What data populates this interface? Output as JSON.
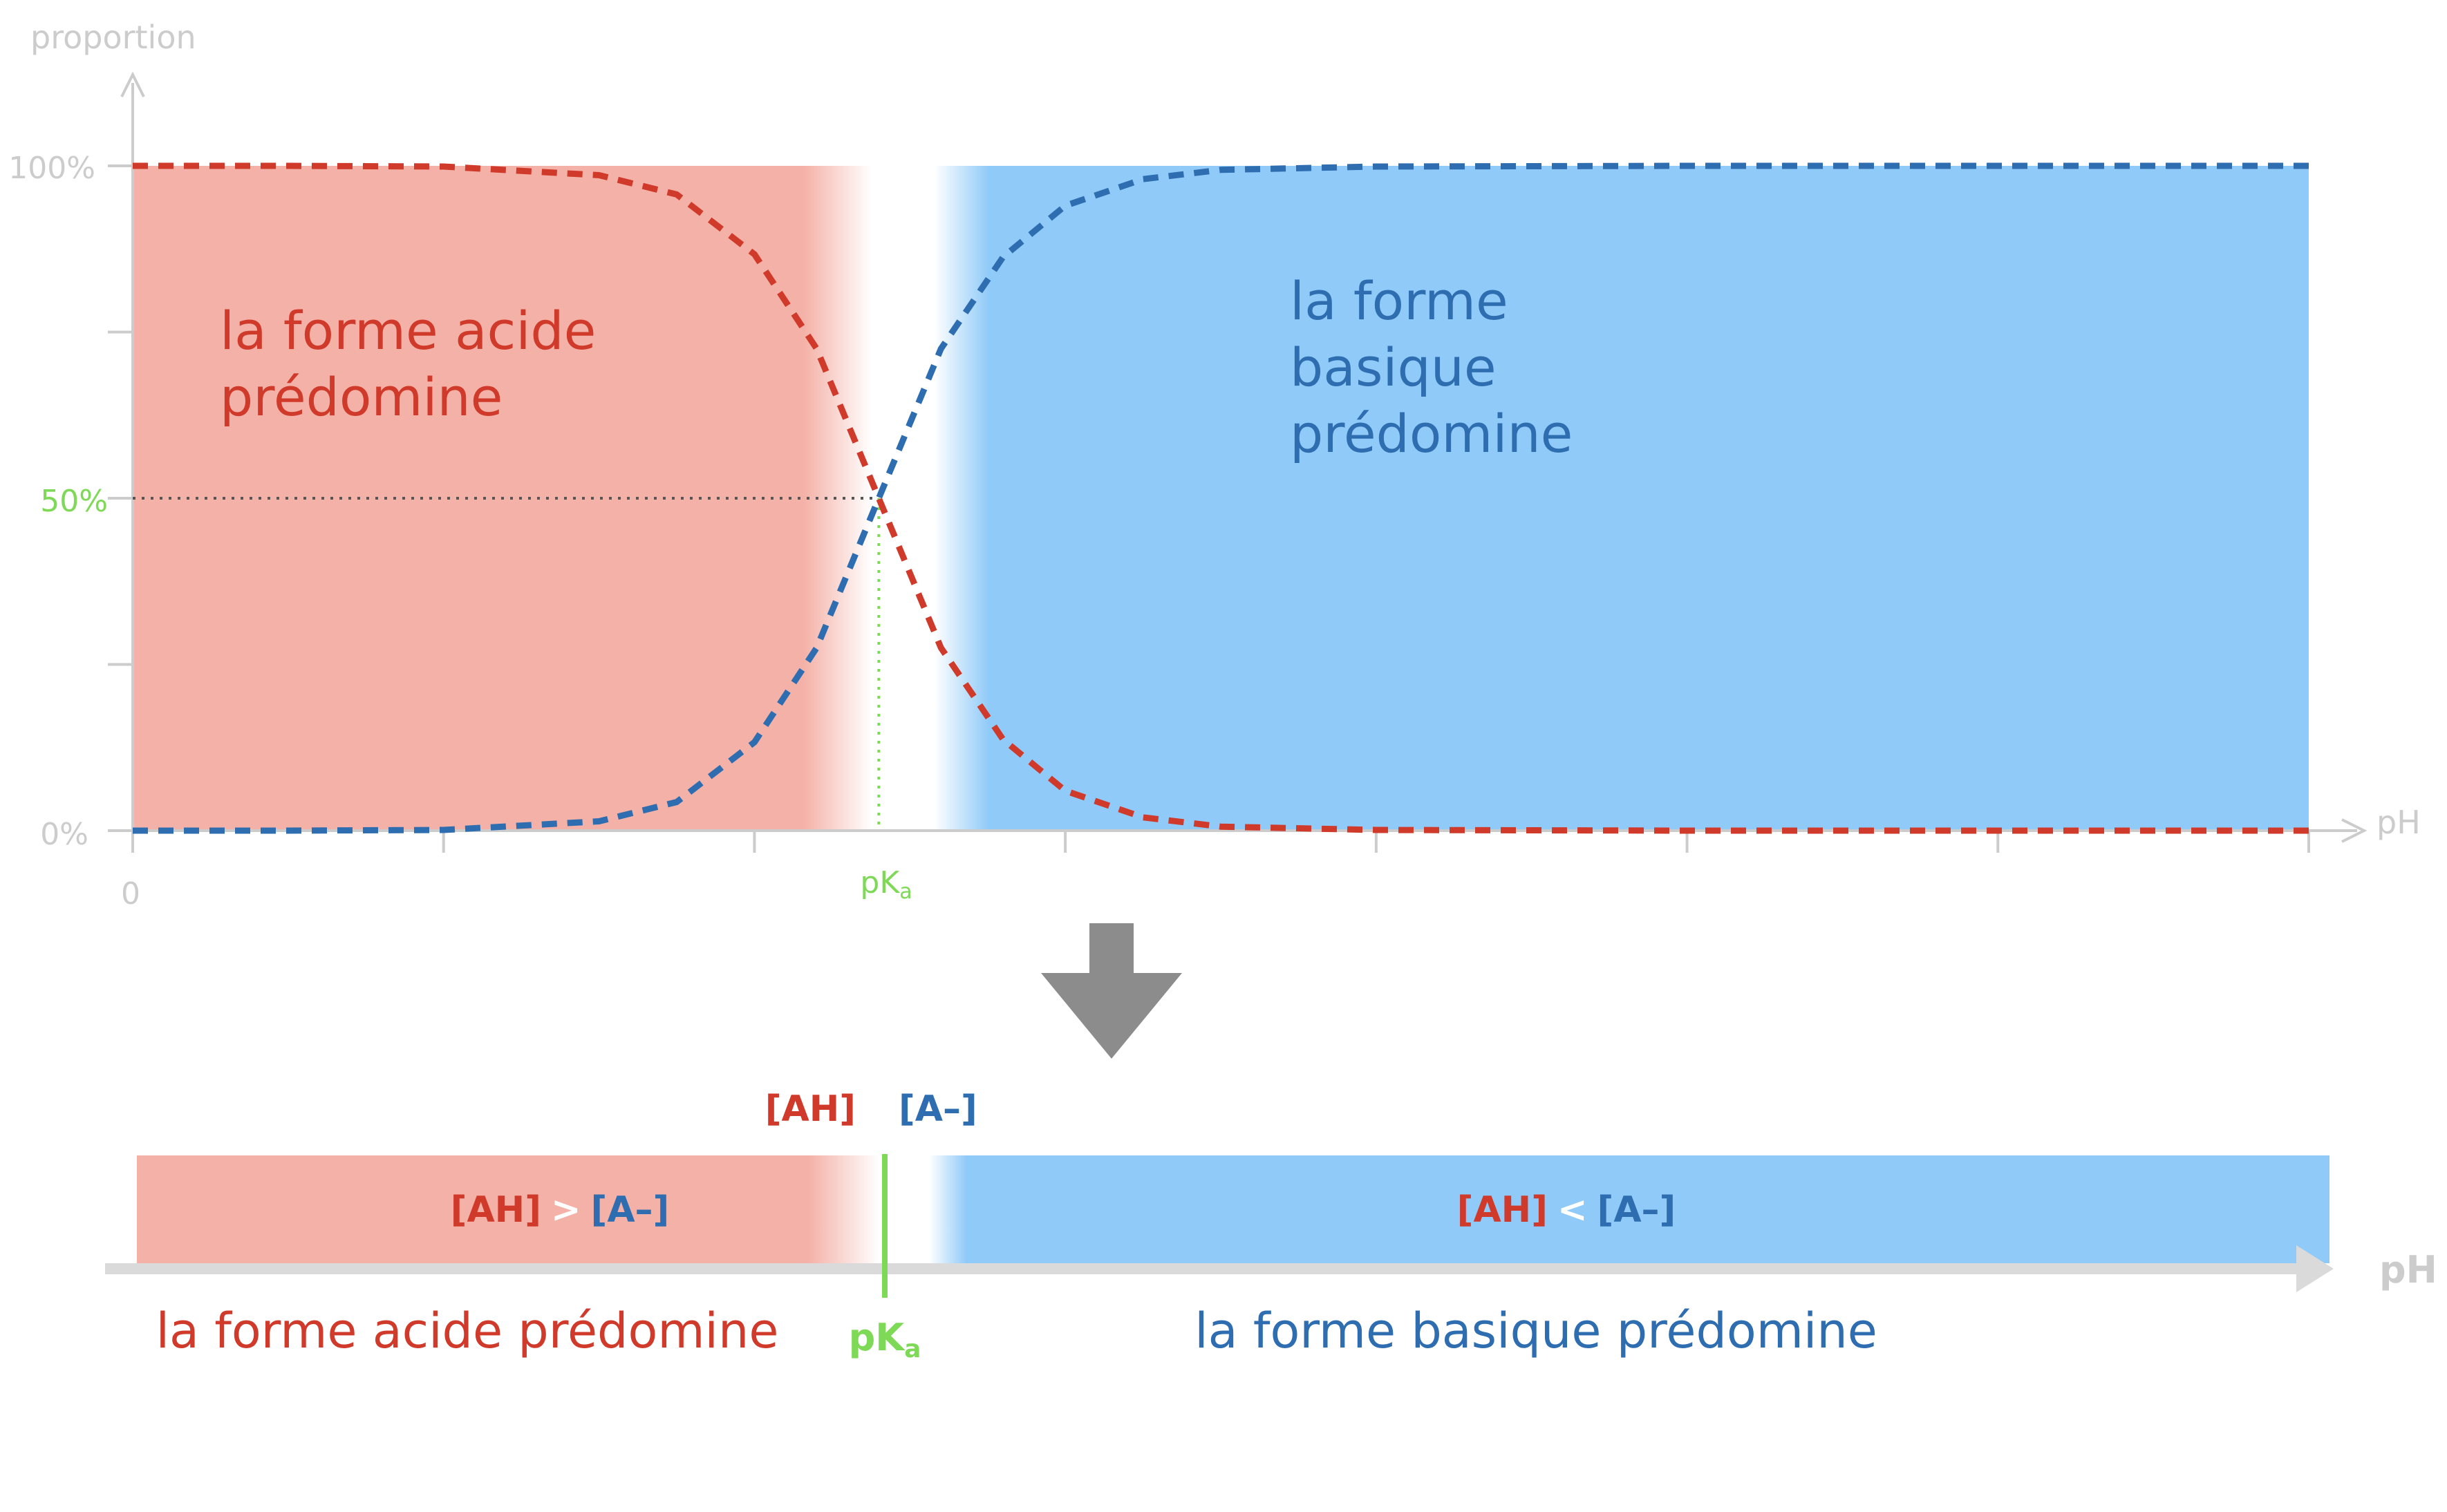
{
  "chart_data": {
    "type": "line",
    "ylabel": "proportion",
    "xlabel": "pH",
    "y_ticks": [
      "100%",
      "50%",
      "0%"
    ],
    "x_origin_label": "0",
    "pka_label_main": "pK",
    "pka_label_sub": "a",
    "xlim": [
      0,
      14
    ],
    "ylim": [
      0,
      100
    ],
    "pka": 4.8,
    "x_tick_count": 7,
    "grid": false,
    "series": [
      {
        "name": "[AH]",
        "color": "#d03a2b",
        "x": [
          0,
          1,
          2,
          3,
          3.5,
          4,
          4.4,
          4.8,
          5.2,
          5.6,
          6,
          6.5,
          7,
          8,
          10,
          14
        ],
        "y": [
          100,
          100,
          99.9,
          98.6,
          95.7,
          86.7,
          72.5,
          50,
          27.5,
          13.7,
          6,
          2,
          0.6,
          0.1,
          0,
          0
        ]
      },
      {
        "name": "[A–]",
        "color": "#2f6db1",
        "x": [
          0,
          1,
          2,
          3,
          3.5,
          4,
          4.4,
          4.8,
          5.2,
          5.6,
          6,
          6.5,
          7,
          8,
          10,
          14
        ],
        "y": [
          0,
          0,
          0.1,
          1.4,
          4.3,
          13.3,
          27.5,
          50,
          72.5,
          86.3,
          94,
          98,
          99.4,
          99.9,
          100,
          100
        ]
      }
    ],
    "regions": [
      {
        "label_lines": [
          "la forme acide",
          "prédomine"
        ],
        "color": "#d03a2b",
        "fill": "#f4b1a7"
      },
      {
        "label_lines": [
          "la forme",
          "basique",
          "prédomine"
        ],
        "color": "#2f6db1",
        "fill": "#90caf8"
      }
    ]
  },
  "scale": {
    "ah": "[AH]",
    "a": "[A–]",
    "gt": ">",
    "lt": "<",
    "axis_label": "pH",
    "pka_main": "pK",
    "pka_sub": "a",
    "acid_label": "la forme acide prédomine",
    "base_label": "la forme basique prédomine"
  },
  "colors": {
    "acid": "#d03a2b",
    "base": "#2f6db1",
    "acid_fill": "#f4b1a7",
    "base_fill": "#90caf8",
    "pka": "#7ed957",
    "axis": "#cccccc",
    "arrow": "#8c8c8c"
  }
}
